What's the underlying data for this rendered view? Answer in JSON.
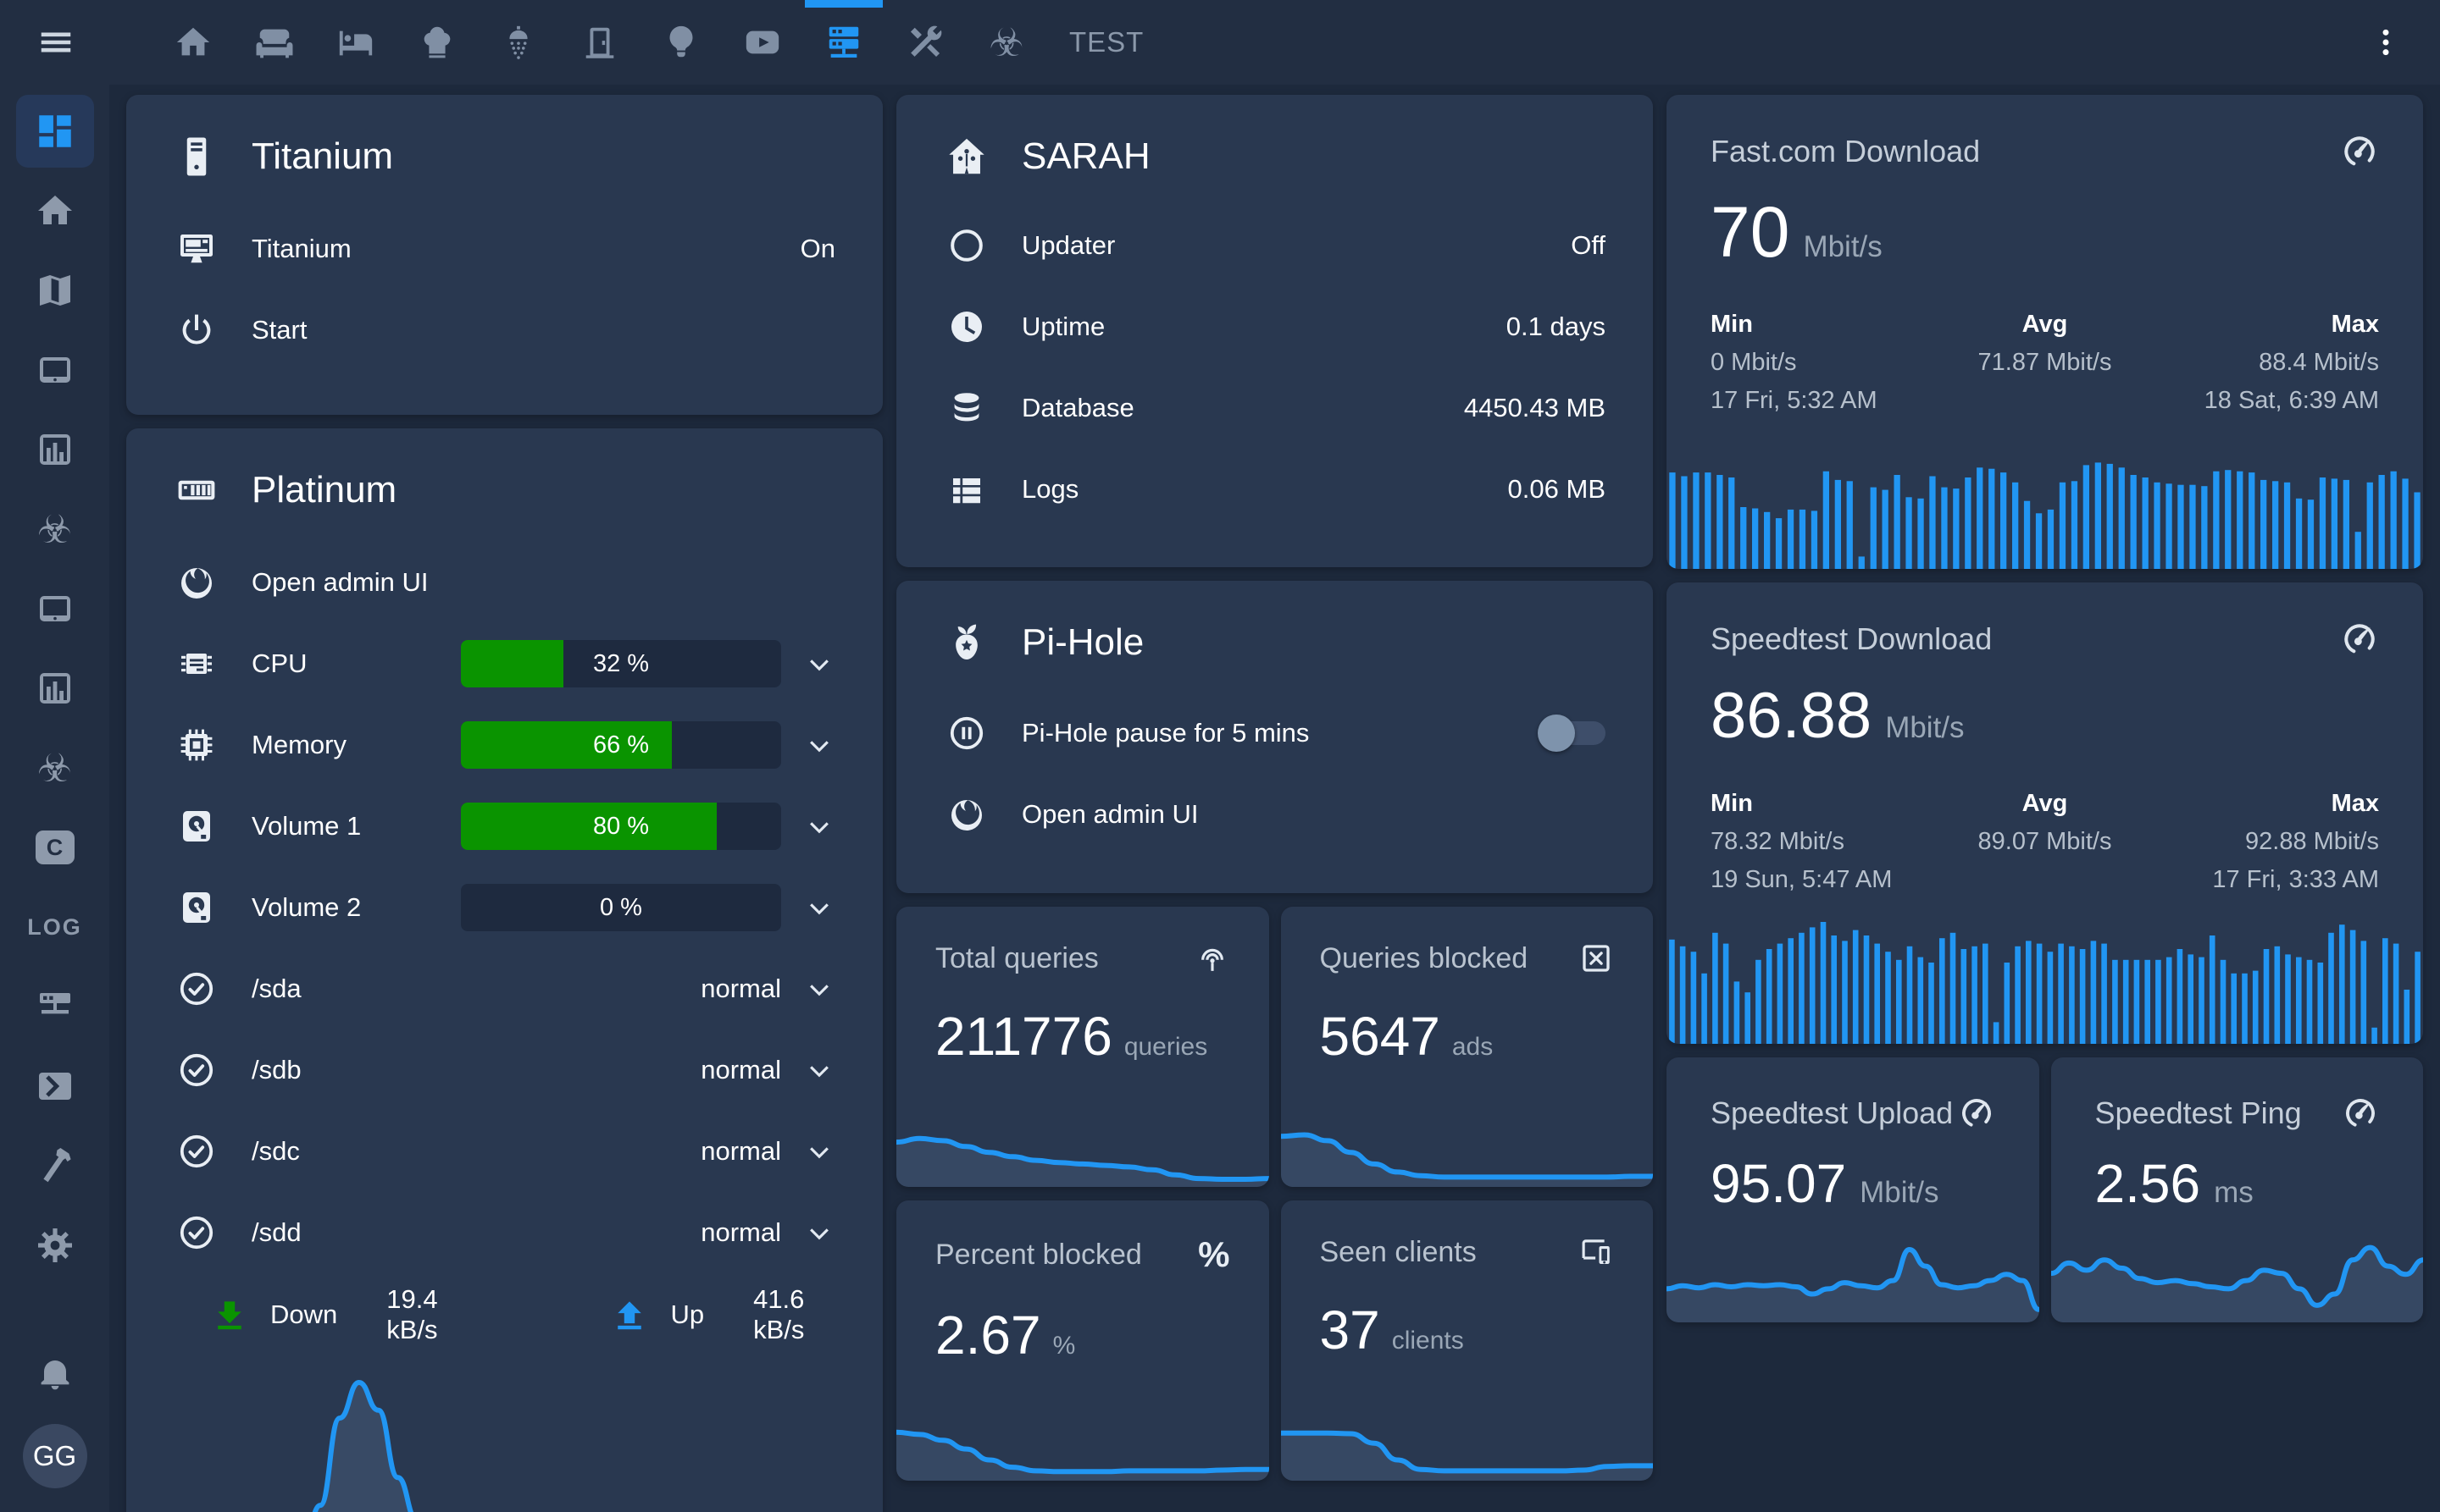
{
  "colors": {
    "accent": "#2196f3",
    "green": "#0a9400",
    "card_background": "#293850",
    "page_background": "#1d293c",
    "toolbar_background": "#222e42"
  },
  "topbar": {
    "tabs": [
      "home",
      "sofa",
      "bed",
      "chef-hat",
      "shower",
      "door",
      "lightbulb",
      "youtube",
      "server-network",
      "tools",
      "biohazard"
    ],
    "active_tab": "server-network",
    "test_tab_label": "TEST",
    "biohazard_glyph": "☣"
  },
  "sidebar": {
    "items": [
      "view-dashboard",
      "home",
      "map",
      "tablet",
      "chart-box",
      "biohazard",
      "tablet",
      "chart-box",
      "biohazard",
      "language-c",
      "log",
      "server-network",
      "console",
      "hammer",
      "gear",
      "bell",
      "avatar"
    ],
    "active_item": "view-dashboard",
    "log_label": "LOG",
    "c_label": "C",
    "avatar_initials": "GG",
    "biohazard_glyph": "☣"
  },
  "cards": {
    "titanium": {
      "title": "Titanium",
      "rows": [
        {
          "icon": "desktop-classic",
          "label": "Titanium",
          "value": "On"
        },
        {
          "icon": "power",
          "label": "Start",
          "value": ""
        }
      ]
    },
    "platinum": {
      "title": "Platinum",
      "admin_label": "Open admin UI",
      "gauges": [
        {
          "icon": "cpu-chip",
          "label": "CPU",
          "percent": 32,
          "text": "32 %"
        },
        {
          "icon": "memory-chip",
          "label": "Memory",
          "percent": 66,
          "text": "66 %"
        },
        {
          "icon": "harddisk",
          "label": "Volume 1",
          "percent": 80,
          "text": "80 %"
        },
        {
          "icon": "harddisk",
          "label": "Volume 2",
          "percent": 0,
          "text": "0 %"
        }
      ],
      "disks": [
        {
          "icon": "check-circle",
          "label": "/sda",
          "value": "normal"
        },
        {
          "icon": "check-circle",
          "label": "/sdb",
          "value": "normal"
        },
        {
          "icon": "check-circle",
          "label": "/sdc",
          "value": "normal"
        },
        {
          "icon": "check-circle",
          "label": "/sdd",
          "value": "normal"
        }
      ],
      "network": {
        "down_label": "Down",
        "down_value": "19.4 kB/s",
        "up_label": "Up",
        "up_value": "41.6 kB/s"
      }
    },
    "sarah": {
      "title": "SARAH",
      "rows": [
        {
          "icon": "circle-outline",
          "label": "Updater",
          "value": "Off"
        },
        {
          "icon": "clock",
          "label": "Uptime",
          "value": "0.1 days"
        },
        {
          "icon": "database",
          "label": "Database",
          "value": "4450.43 MB"
        },
        {
          "icon": "view-list",
          "label": "Logs",
          "value": "0.06 MB"
        }
      ]
    },
    "pihole": {
      "title": "Pi-Hole",
      "pause_label": "Pi-Hole pause for 5 mins",
      "pause_on": false,
      "admin_label": "Open admin UI"
    },
    "stats": [
      {
        "title": "Total queries",
        "icon": "access-point",
        "value": "211776",
        "unit": "queries"
      },
      {
        "title": "Queries blocked",
        "icon": "close-box",
        "value": "5647",
        "unit": "ads"
      },
      {
        "title": "Percent blocked",
        "icon": "percent",
        "value": "2.67",
        "unit": "%",
        "icon_glyph": "%"
      },
      {
        "title": "Seen clients",
        "icon": "devices",
        "value": "37",
        "unit": "clients"
      }
    ],
    "fastcom": {
      "title": "Fast.com Download",
      "icon": "speedometer",
      "value": "70",
      "unit": "Mbit/s",
      "min_label": "Min",
      "avg_label": "Avg",
      "max_label": "Max",
      "min_value": "0 Mbit/s",
      "min_date": "17 Fri, 5:32 AM",
      "avg_value": "71.87 Mbit/s",
      "max_value": "88.4 Mbit/s",
      "max_date": "18 Sat, 6:39 AM"
    },
    "speedtest_download": {
      "title": "Speedtest Download",
      "icon": "speedometer",
      "value": "86.88",
      "unit": "Mbit/s",
      "min_label": "Min",
      "avg_label": "Avg",
      "max_label": "Max",
      "min_value": "78.32 Mbit/s",
      "min_date": "19 Sun, 5:47 AM",
      "avg_value": "89.07 Mbit/s",
      "max_value": "92.88 Mbit/s",
      "max_date": "17 Fri, 3:33 AM"
    },
    "speedtest_upload": {
      "title": "Speedtest Upload",
      "icon": "speedometer",
      "value": "95.07",
      "unit": "Mbit/s"
    },
    "speedtest_ping": {
      "title": "Speedtest Ping",
      "icon": "speedometer",
      "value": "2.56",
      "unit": "ms"
    }
  },
  "chart_data": {
    "network": {
      "type": "area",
      "title": "Platinum network throughput (normalized 0-1)",
      "series": [
        {
          "name": "Down 19.4 kB/s",
          "color": "#2196f3",
          "values": [
            0.01,
            0.01,
            0.01,
            0.01,
            0.01,
            0.01,
            0.01,
            0.02,
            0.03,
            0.1,
            0.38,
            0.82,
            1.0,
            0.86,
            0.52,
            0.3,
            0.22,
            0.24,
            0.3,
            0.27,
            0.16,
            0.07,
            0.02,
            0.01,
            0.01,
            0.01,
            0.01,
            0.01,
            0.01,
            0.01,
            0.01,
            0.01,
            0.01,
            0.01,
            0.01,
            0.01,
            0.01,
            0.01,
            0.01,
            0.01
          ]
        },
        {
          "name": "Up 41.6 kB/s",
          "color": "#0a9400",
          "values": [
            0.02,
            0.02,
            0.02,
            0.02,
            0.02,
            0.02,
            0.02,
            0.02,
            0.02,
            0.02,
            0.02,
            0.02
          ]
        }
      ]
    },
    "total_queries_spark": {
      "type": "area",
      "values": [
        0.58,
        0.63,
        0.6,
        0.52,
        0.44,
        0.38,
        0.33,
        0.3,
        0.28,
        0.26,
        0.24,
        0.2,
        0.13,
        0.08,
        0.07,
        0.07,
        0.08
      ]
    },
    "queries_blocked_spark": {
      "type": "area",
      "values": [
        0.66,
        0.68,
        0.6,
        0.44,
        0.28,
        0.17,
        0.12,
        0.1,
        0.1,
        0.1,
        0.1,
        0.1,
        0.1,
        0.1,
        0.1,
        0.11,
        0.11
      ]
    },
    "percent_blocked_spark": {
      "type": "area",
      "values": [
        0.63,
        0.6,
        0.52,
        0.4,
        0.25,
        0.15,
        0.1,
        0.09,
        0.09,
        0.09,
        0.1,
        0.1,
        0.1,
        0.1,
        0.11,
        0.12,
        0.12
      ]
    },
    "seen_clients_spark": {
      "type": "area",
      "values": [
        0.62,
        0.62,
        0.62,
        0.61,
        0.48,
        0.25,
        0.12,
        0.1,
        0.1,
        0.1,
        0.1,
        0.1,
        0.1,
        0.11,
        0.16,
        0.17,
        0.17
      ]
    },
    "fastcom_bars": {
      "type": "bar",
      "unit": "Mbit/s (relative %)",
      "values": [
        78,
        75,
        78,
        78,
        76,
        74,
        50,
        49,
        46,
        41,
        48,
        48,
        47,
        79,
        72,
        71,
        10,
        66,
        64,
        76,
        58,
        57,
        75,
        66,
        65,
        74,
        82,
        81,
        78,
        70,
        55,
        45,
        48,
        70,
        71,
        84,
        86,
        85,
        82,
        76,
        74,
        70,
        69,
        68,
        68,
        67,
        79,
        80,
        79,
        78,
        72,
        71,
        70,
        57,
        56,
        74,
        73,
        72,
        30,
        70,
        76,
        79,
        73,
        62
      ]
    },
    "speedtest_bars": {
      "type": "bar",
      "unit": "Mbit/s (relative %)",
      "values": [
        77,
        72,
        68,
        52,
        82,
        74,
        46,
        38,
        62,
        70,
        74,
        78,
        82,
        86,
        90,
        80,
        76,
        84,
        80,
        74,
        68,
        62,
        72,
        64,
        60,
        78,
        82,
        70,
        72,
        74,
        16,
        60,
        72,
        76,
        74,
        68,
        74,
        72,
        70,
        76,
        74,
        62,
        62,
        62,
        62,
        62,
        64,
        70,
        66,
        64,
        80,
        62,
        52,
        52,
        54,
        70,
        72,
        66,
        64,
        62,
        60,
        82,
        88,
        84,
        76,
        12,
        78,
        74,
        40,
        68
      ]
    },
    "upload_line": {
      "type": "area",
      "values": [
        0.3,
        0.33,
        0.31,
        0.34,
        0.32,
        0.34,
        0.33,
        0.34,
        0.32,
        0.25,
        0.3,
        0.36,
        0.33,
        0.31,
        0.38,
        0.68,
        0.52,
        0.34,
        0.31,
        0.33,
        0.38,
        0.44,
        0.38,
        0.1
      ]
    },
    "ping_line": {
      "type": "area",
      "values": [
        0.45,
        0.55,
        0.48,
        0.58,
        0.5,
        0.4,
        0.36,
        0.38,
        0.35,
        0.32,
        0.3,
        0.38,
        0.48,
        0.45,
        0.3,
        0.14,
        0.25,
        0.58,
        0.7,
        0.52,
        0.44,
        0.58
      ]
    }
  }
}
